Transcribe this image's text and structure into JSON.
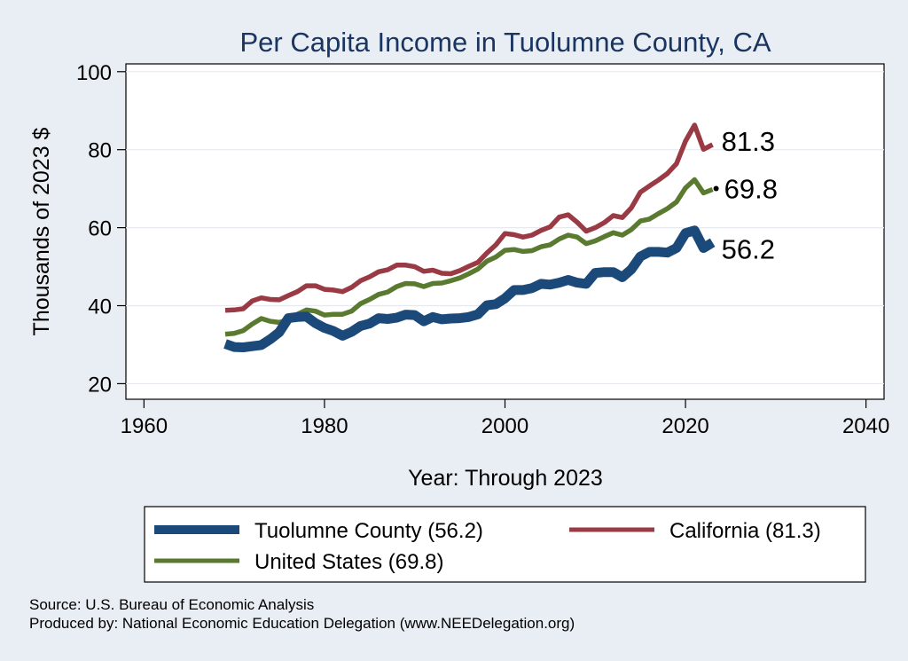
{
  "chart_data": {
    "type": "line",
    "title": "Per Capita Income in Tuolumne County, CA",
    "xlabel": "Year: Through 2023",
    "ylabel": "Thousands of 2023 $",
    "xlim": [
      1958,
      2042
    ],
    "ylim": [
      16,
      102
    ],
    "xticks": [
      "1960",
      "1980",
      "2000",
      "2020",
      "2040"
    ],
    "yticks": [
      "20",
      "40",
      "60",
      "80",
      "100"
    ],
    "grid": "horizontal",
    "legend_position": "bottom",
    "series": [
      {
        "name": "Tuolumne County (56.2)",
        "end_label": "56.2",
        "color": "#1b4a7a",
        "x": [
          1969,
          1970,
          1971,
          1972,
          1973,
          1974,
          1975,
          1976,
          1977,
          1978,
          1979,
          1980,
          1981,
          1982,
          1983,
          1984,
          1985,
          1986,
          1987,
          1988,
          1989,
          1990,
          1991,
          1992,
          1993,
          1994,
          1995,
          1996,
          1997,
          1998,
          1999,
          2000,
          2001,
          2002,
          2003,
          2004,
          2005,
          2006,
          2007,
          2008,
          2009,
          2010,
          2011,
          2012,
          2013,
          2014,
          2015,
          2016,
          2017,
          2018,
          2019,
          2020,
          2021,
          2022,
          2023
        ],
        "y": [
          30.2,
          29.4,
          29.3,
          29.6,
          29.9,
          31.4,
          33.2,
          36.8,
          37.1,
          37.2,
          35.5,
          34.3,
          33.5,
          32.3,
          33.3,
          34.8,
          35.4,
          36.8,
          36.6,
          36.9,
          37.7,
          37.6,
          36.0,
          37.1,
          36.5,
          36.7,
          36.8,
          37.1,
          37.8,
          40.1,
          40.4,
          41.9,
          44.0,
          44.0,
          44.5,
          45.6,
          45.4,
          45.9,
          46.6,
          45.9,
          45.6,
          48.4,
          48.6,
          48.6,
          47.3,
          49.3,
          52.6,
          53.8,
          53.8,
          53.6,
          54.8,
          58.6,
          59.3,
          54.8,
          56.2
        ]
      },
      {
        "name": "California (81.3)",
        "end_label": "81.3",
        "color": "#9a3a44",
        "x": [
          1969,
          1970,
          1971,
          1972,
          1973,
          1974,
          1975,
          1976,
          1977,
          1978,
          1979,
          1980,
          1981,
          1982,
          1983,
          1984,
          1985,
          1986,
          1987,
          1988,
          1989,
          1990,
          1991,
          1992,
          1993,
          1994,
          1995,
          1996,
          1997,
          1998,
          1999,
          2000,
          2001,
          2002,
          2003,
          2004,
          2005,
          2006,
          2007,
          2008,
          2009,
          2010,
          2011,
          2012,
          2013,
          2014,
          2015,
          2016,
          2017,
          2018,
          2019,
          2020,
          2021,
          2022,
          2023
        ],
        "y": [
          38.8,
          38.9,
          39.2,
          41.2,
          42.0,
          41.6,
          41.5,
          42.6,
          43.6,
          45.1,
          45.1,
          44.2,
          44.0,
          43.6,
          44.7,
          46.4,
          47.4,
          48.7,
          49.2,
          50.4,
          50.4,
          50.0,
          48.8,
          49.1,
          48.3,
          48.2,
          49.0,
          50.1,
          51.1,
          53.5,
          55.6,
          58.5,
          58.2,
          57.6,
          58.1,
          59.3,
          60.2,
          62.7,
          63.3,
          61.4,
          59.1,
          60.0,
          61.3,
          63.1,
          62.6,
          65.1,
          69.1,
          70.7,
          72.2,
          73.9,
          76.4,
          82.2,
          86.3,
          80.1,
          81.3
        ]
      },
      {
        "name": "United States (69.8)",
        "end_label": "69.8",
        "color": "#5a7a30",
        "x": [
          1969,
          1970,
          1971,
          1972,
          1973,
          1974,
          1975,
          1976,
          1977,
          1978,
          1979,
          1980,
          1981,
          1982,
          1983,
          1984,
          1985,
          1986,
          1987,
          1988,
          1989,
          1990,
          1991,
          1992,
          1993,
          1994,
          1995,
          1996,
          1997,
          1998,
          1999,
          2000,
          2001,
          2002,
          2003,
          2004,
          2005,
          2006,
          2007,
          2008,
          2009,
          2010,
          2011,
          2012,
          2013,
          2014,
          2015,
          2016,
          2017,
          2018,
          2019,
          2020,
          2021,
          2022,
          2023
        ],
        "y": [
          32.7,
          32.9,
          33.6,
          35.3,
          36.7,
          36.0,
          35.7,
          36.4,
          37.8,
          38.9,
          38.6,
          37.6,
          37.8,
          37.8,
          38.6,
          40.5,
          41.6,
          42.9,
          43.5,
          44.9,
          45.7,
          45.6,
          44.9,
          45.7,
          45.8,
          46.4,
          47.1,
          48.2,
          49.4,
          51.4,
          52.5,
          54.2,
          54.4,
          53.9,
          54.1,
          55.1,
          55.6,
          57.1,
          58.1,
          57.6,
          55.9,
          56.6,
          57.7,
          58.7,
          58.1,
          59.5,
          61.7,
          62.2,
          63.6,
          64.9,
          66.6,
          70.2,
          72.3,
          68.9,
          69.8
        ]
      }
    ]
  },
  "notes": {
    "source": "Source: U.S. Bureau of Economic Analysis",
    "produced": "Produced by: National Economic Education Delegation (www.NEEDelegation.org)"
  }
}
